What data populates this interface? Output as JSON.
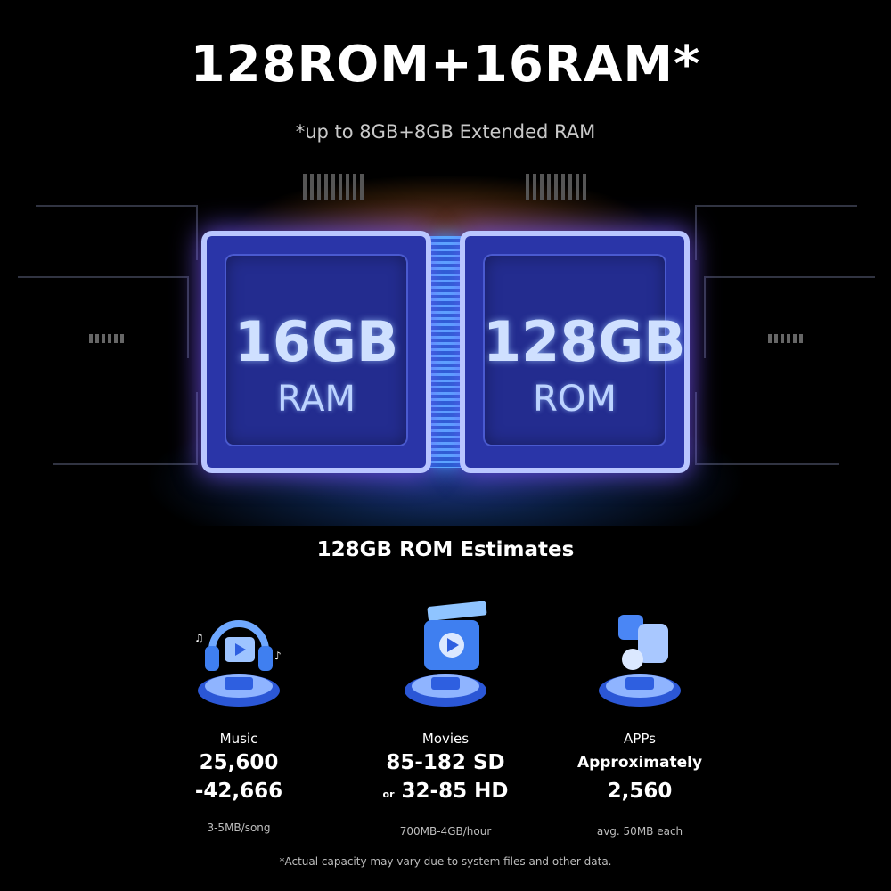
{
  "title": "128ROM+16RAM*",
  "subtitle": "*up to 8GB+8GB Extended RAM",
  "chips": [
    {
      "size": "16GB",
      "type": "RAM"
    },
    {
      "size": "128GB",
      "type": "ROM"
    }
  ],
  "section_title": "128GB ROM Estimates",
  "estimates": [
    {
      "icon": "headphones-music-icon",
      "label": "Music",
      "line1": "25,600",
      "line2_prefix": "",
      "line2": "-42,666",
      "note": "3-5MB/song"
    },
    {
      "icon": "movie-clapper-play-icon",
      "label": "Movies",
      "line1": "85-182 SD",
      "line2_prefix": "or",
      "line2": "32-85 HD",
      "note": "700MB-4GB/hour"
    },
    {
      "icon": "apps-cubes-icon",
      "label": "APPs",
      "line1": "Approximately",
      "line2_prefix": "",
      "line2": "2,560",
      "note": "avg. 50MB each"
    }
  ],
  "footnote": "*Actual capacity may vary due to system files and other data.",
  "colors": {
    "background": "#000000",
    "chip": "#2a35a8",
    "glow_purple": "#7a3cff",
    "glow_blue": "#3aa0ff",
    "glow_orange": "#ff8c28"
  }
}
